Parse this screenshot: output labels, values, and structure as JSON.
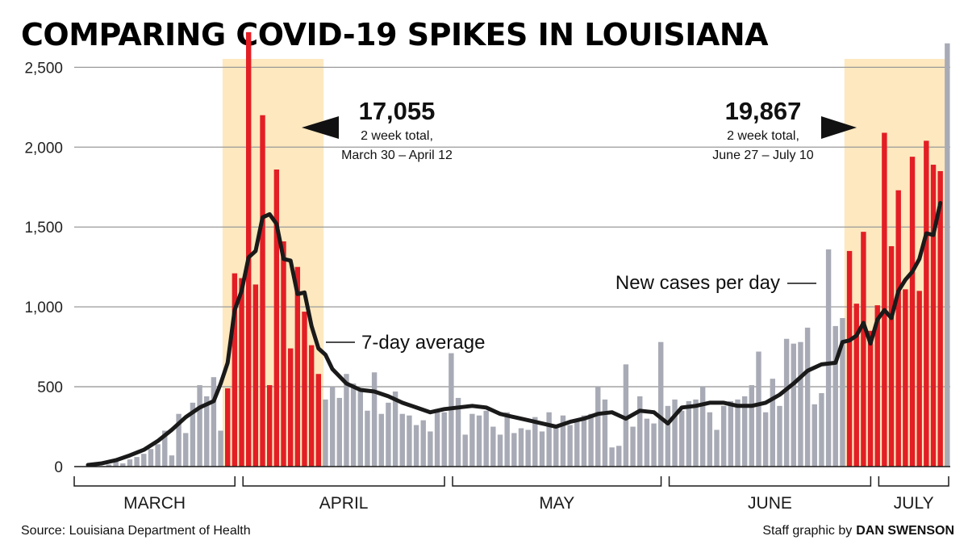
{
  "title": "COMPARING COVID-19 SPIKES IN LOUISIANA",
  "source": "Source: Louisiana Department of Health",
  "credit_prefix": "Staff graphic by",
  "credit_name": "DAN SWENSON",
  "colors": {
    "spike": "#e31e24",
    "normal": "#a8abb5",
    "highlight": "#fde8bf",
    "line": "#1a1a1a",
    "grid": "#9a9a9a"
  },
  "chart_data": {
    "type": "bar",
    "x_start": "2020-03-09",
    "x_end": "2020-07-10",
    "ylim": [
      0,
      2800
    ],
    "yticks": [
      0,
      500,
      1000,
      1500,
      2000,
      2500
    ],
    "ytick_labels": [
      "0",
      "500",
      "1,000",
      "1,500",
      "2,000",
      "2,500"
    ],
    "months": [
      "MARCH",
      "APRIL",
      "MAY",
      "JUNE",
      "JULY"
    ],
    "series": [
      {
        "name": "New cases per day",
        "values": [
          1,
          0,
          5,
          0,
          13,
          35,
          20,
          45,
          60,
          80,
          110,
          140,
          225,
          70,
          330,
          210,
          400,
          510,
          440,
          560,
          225,
          490,
          1210,
          1180,
          2720,
          1140,
          2200,
          510,
          1860,
          1410,
          740,
          1250,
          970,
          760,
          580,
          420,
          500,
          430,
          580,
          520,
          480,
          350,
          590,
          330,
          400,
          470,
          330,
          320,
          260,
          290,
          220,
          360,
          340,
          710,
          430,
          200,
          330,
          320,
          350,
          250,
          200,
          340,
          210,
          240,
          230,
          310,
          220,
          340,
          250,
          320,
          260,
          280,
          320,
          330,
          500,
          420,
          120,
          130,
          640,
          250,
          440,
          300,
          270,
          780,
          380,
          420,
          350,
          410,
          420,
          500,
          340,
          230,
          380,
          410,
          420,
          440,
          510,
          720,
          340,
          550,
          380,
          800,
          770,
          780,
          870,
          390,
          460,
          1360,
          880,
          930,
          1350,
          1020,
          1470,
          850,
          1010,
          2090,
          1380,
          1730,
          1110,
          1940,
          1100,
          2040,
          1890,
          1850,
          2650
        ]
      },
      {
        "name": "7-day average",
        "values": [
          null,
          null,
          null,
          null,
          null,
          null,
          null,
          null,
          null,
          null,
          null,
          null,
          null,
          null,
          null,
          null,
          null,
          null,
          null,
          null,
          null,
          null,
          null,
          null,
          null,
          null,
          null,
          null,
          null,
          null,
          null,
          null,
          null,
          null,
          null,
          null,
          null,
          null,
          null,
          null,
          null,
          null,
          null,
          null,
          null,
          null,
          null,
          null,
          null,
          null,
          null,
          null,
          null,
          null,
          null,
          null,
          null,
          null,
          null,
          null,
          null,
          null,
          null,
          null,
          null,
          null,
          null,
          null,
          null,
          null,
          null,
          null,
          null,
          null,
          null,
          null,
          null,
          null,
          null,
          null,
          null,
          null,
          null,
          null,
          null,
          null,
          null,
          null,
          null,
          null,
          null,
          null,
          null,
          null,
          null,
          null,
          null,
          null,
          null,
          null,
          null,
          null,
          null,
          null,
          null,
          null,
          null,
          null,
          null,
          null,
          null,
          null,
          null,
          null,
          null,
          null,
          null,
          null,
          null,
          null,
          null,
          null,
          null,
          null
        ]
      }
    ],
    "average_points": [
      [
        "2020-03-10",
        10
      ],
      [
        "2020-03-12",
        20
      ],
      [
        "2020-03-14",
        40
      ],
      [
        "2020-03-16",
        70
      ],
      [
        "2020-03-18",
        105
      ],
      [
        "2020-03-20",
        160
      ],
      [
        "2020-03-22",
        230
      ],
      [
        "2020-03-24",
        310
      ],
      [
        "2020-03-26",
        370
      ],
      [
        "2020-03-28",
        410
      ],
      [
        "2020-03-29",
        520
      ],
      [
        "2020-03-30",
        650
      ],
      [
        "2020-03-31",
        980
      ],
      [
        "2020-04-01",
        1100
      ],
      [
        "2020-04-02",
        1310
      ],
      [
        "2020-04-03",
        1350
      ],
      [
        "2020-04-04",
        1560
      ],
      [
        "2020-04-05",
        1580
      ],
      [
        "2020-04-06",
        1520
      ],
      [
        "2020-04-07",
        1300
      ],
      [
        "2020-04-08",
        1290
      ],
      [
        "2020-04-09",
        1080
      ],
      [
        "2020-04-10",
        1090
      ],
      [
        "2020-04-11",
        880
      ],
      [
        "2020-04-12",
        740
      ],
      [
        "2020-04-13",
        700
      ],
      [
        "2020-04-14",
        610
      ],
      [
        "2020-04-16",
        520
      ],
      [
        "2020-04-18",
        480
      ],
      [
        "2020-04-20",
        470
      ],
      [
        "2020-04-22",
        440
      ],
      [
        "2020-04-24",
        400
      ],
      [
        "2020-04-26",
        370
      ],
      [
        "2020-04-28",
        340
      ],
      [
        "2020-04-30",
        360
      ],
      [
        "2020-05-02",
        370
      ],
      [
        "2020-05-04",
        380
      ],
      [
        "2020-05-06",
        370
      ],
      [
        "2020-05-08",
        330
      ],
      [
        "2020-05-10",
        310
      ],
      [
        "2020-05-12",
        290
      ],
      [
        "2020-05-14",
        270
      ],
      [
        "2020-05-16",
        250
      ],
      [
        "2020-05-18",
        280
      ],
      [
        "2020-05-20",
        300
      ],
      [
        "2020-05-22",
        330
      ],
      [
        "2020-05-24",
        340
      ],
      [
        "2020-05-26",
        300
      ],
      [
        "2020-05-28",
        350
      ],
      [
        "2020-05-30",
        340
      ],
      [
        "2020-06-01",
        270
      ],
      [
        "2020-06-03",
        370
      ],
      [
        "2020-06-05",
        380
      ],
      [
        "2020-06-07",
        400
      ],
      [
        "2020-06-09",
        400
      ],
      [
        "2020-06-11",
        380
      ],
      [
        "2020-06-13",
        380
      ],
      [
        "2020-06-15",
        400
      ],
      [
        "2020-06-17",
        450
      ],
      [
        "2020-06-19",
        520
      ],
      [
        "2020-06-21",
        600
      ],
      [
        "2020-06-23",
        640
      ],
      [
        "2020-06-25",
        650
      ],
      [
        "2020-06-26",
        780
      ],
      [
        "2020-06-27",
        790
      ],
      [
        "2020-06-28",
        820
      ],
      [
        "2020-06-29",
        900
      ],
      [
        "2020-06-30",
        770
      ],
      [
        "2020-07-01",
        920
      ],
      [
        "2020-07-02",
        980
      ],
      [
        "2020-07-03",
        930
      ],
      [
        "2020-07-04",
        1100
      ],
      [
        "2020-07-05",
        1170
      ],
      [
        "2020-07-06",
        1220
      ],
      [
        "2020-07-07",
        1300
      ],
      [
        "2020-07-08",
        1460
      ],
      [
        "2020-07-09",
        1450
      ],
      [
        "2020-07-10",
        1650
      ]
    ],
    "spike_windows": [
      {
        "total": "17,055",
        "label": "2 week total,",
        "range": "March 30 – April 12",
        "start": "2020-03-30",
        "end": "2020-04-12"
      },
      {
        "total": "19,867",
        "label": "2 week total,",
        "range": "June 27 – July 10",
        "start": "2020-06-27",
        "end": "2020-07-10"
      }
    ],
    "annotations": {
      "bars": "New cases per day",
      "line": "7-day average"
    },
    "legend": "none",
    "grid": true
  }
}
